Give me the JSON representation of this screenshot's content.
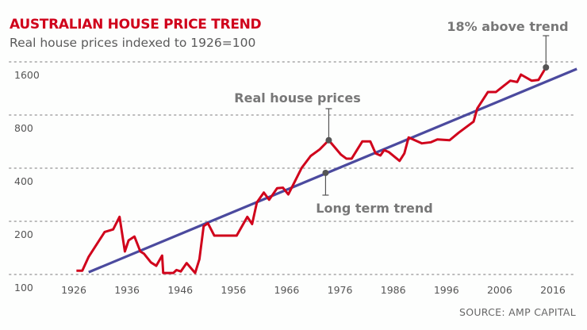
{
  "title": "AUSTRALIAN HOUSE PRICE TREND",
  "subtitle": "Real house prices indexed to 1926=100",
  "source": "SOURCE: AMP CAPITAL",
  "colors": {
    "title": "#d0021b",
    "prices": "#d0021b",
    "trend": "#4b4a9e",
    "marker": "#555555",
    "grid": "#bbbbbb"
  },
  "chart_data": {
    "type": "line",
    "title": "AUSTRALIAN HOUSE PRICE TREND",
    "subtitle": "Real house prices indexed to 1926=100",
    "xlabel": "",
    "ylabel": "",
    "yscale": "log2",
    "ylim": [
      100,
      1600
    ],
    "xlim": [
      1926,
      2020
    ],
    "y_ticks": [
      100,
      200,
      400,
      800,
      1600
    ],
    "y_tick_labels": [
      "100",
      "200",
      "400",
      "800",
      "1600"
    ],
    "x_ticks": [
      1926,
      1936,
      1946,
      1956,
      1966,
      1976,
      1986,
      1996,
      2006,
      2016
    ],
    "x_tick_labels": [
      "1926",
      "1936",
      "1946",
      "1956",
      "1966",
      "1976",
      "1986",
      "1996",
      "2006",
      "2016"
    ],
    "grid": "horizontal dotted",
    "series": [
      {
        "name": "Real house prices",
        "x": [
          1926.5,
          1927.6,
          1928.8,
          1931.8,
          1933.4,
          1934.6,
          1935.6,
          1936.3,
          1937.4,
          1938.5,
          1939.2,
          1940.5,
          1941.5,
          1942.6,
          1942.8,
          1944.7,
          1945.3,
          1946.1,
          1947.2,
          1948.8,
          1949.6,
          1950.4,
          1951.2,
          1952.4,
          1956.6,
          1958.6,
          1959.5,
          1960.4,
          1961.7,
          1962.7,
          1964.2,
          1965.3,
          1966.3,
          1967.3,
          1968.8,
          1970.5,
          1972.2,
          1973.9,
          1976.2,
          1977.2,
          1978.2,
          1980.2,
          1981.7,
          1982.7,
          1983.6,
          1984.3,
          1985.2,
          1987.2,
          1988.1,
          1988.9,
          1991.4,
          1993.1,
          1994.3,
          1996.6,
          1998.3,
          2001.1,
          2001.8,
          2003.8,
          2005.3,
          2008.0,
          2009.3,
          2010.0,
          2012.0,
          2013.3,
          2014.7
        ],
        "y": [
          105,
          105,
          126,
          174,
          180,
          212,
          135,
          156,
          164,
          135,
          131,
          117,
          112,
          128,
          102,
          102,
          106,
          104,
          116,
          102,
          122,
          188,
          195,
          166,
          166,
          212,
          193,
          256,
          291,
          265,
          308,
          310,
          284,
          326,
          401,
          469,
          511,
          576,
          477,
          453,
          453,
          567,
          567,
          485,
          472,
          506,
          493,
          440,
          485,
          597,
          553,
          561,
          582,
          576,
          635,
          734,
          872,
          1080,
          1080,
          1252,
          1231,
          1356,
          1252,
          1265,
          1488
        ]
      },
      {
        "name": "Long term trend",
        "x": [
          1928.8,
          2020.5
        ],
        "y": [
          103,
          1460
        ]
      }
    ],
    "annotations": [
      {
        "text": "Real house prices",
        "x": 1973.9,
        "y": 576
      },
      {
        "text": "Long term trend",
        "x": 1973.3,
        "y": 376
      },
      {
        "text": "18% above trend",
        "x": 2014.7,
        "y": 1488
      }
    ]
  }
}
